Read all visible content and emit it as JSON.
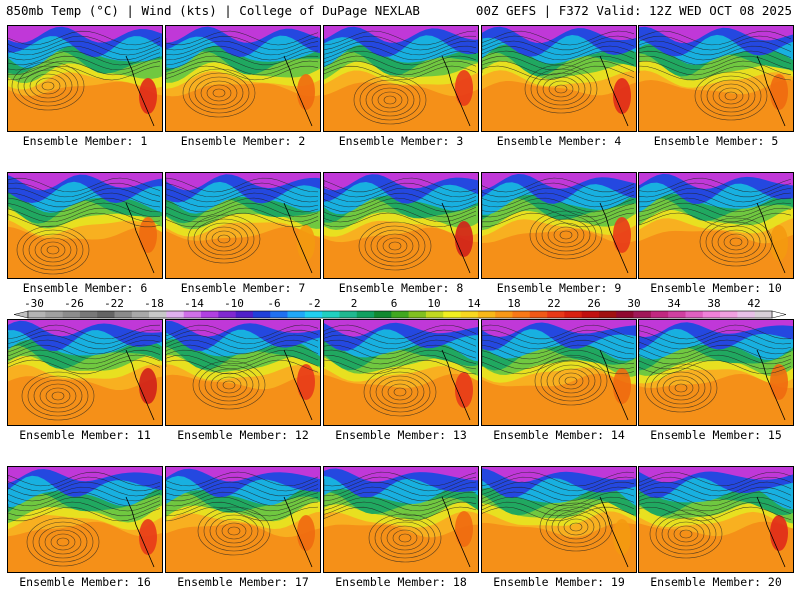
{
  "header": {
    "left": "850mb Temp (°C) | Wind (kts) | College of DuPage NEXLAB",
    "right": "00Z GEFS | F372 Valid: 12Z WED OCT 08 2025"
  },
  "members": [
    {
      "label": "Ensemble Member: 1",
      "accent": "#e02a1a"
    },
    {
      "label": "Ensemble Member: 2",
      "accent": "#f06a10"
    },
    {
      "label": "Ensemble Member: 3",
      "accent": "#e83a18"
    },
    {
      "label": "Ensemble Member: 4",
      "accent": "#e02a1a"
    },
    {
      "label": "Ensemble Member: 5",
      "accent": "#f06a10"
    },
    {
      "label": "Ensemble Member: 6",
      "accent": "#f06a10"
    },
    {
      "label": "Ensemble Member: 7",
      "accent": "#f49a10"
    },
    {
      "label": "Ensemble Member: 8",
      "accent": "#d0201a"
    },
    {
      "label": "Ensemble Member: 9",
      "accent": "#e83a18"
    },
    {
      "label": "Ensemble Member: 10",
      "accent": "#f49a10"
    },
    {
      "label": "Ensemble Member: 11",
      "accent": "#d0201a"
    },
    {
      "label": "Ensemble Member: 12",
      "accent": "#e83a18"
    },
    {
      "label": "Ensemble Member: 13",
      "accent": "#e83a18"
    },
    {
      "label": "Ensemble Member: 14",
      "accent": "#f06a10"
    },
    {
      "label": "Ensemble Member: 15",
      "accent": "#f06a10"
    },
    {
      "label": "Ensemble Member: 16",
      "accent": "#e83a18"
    },
    {
      "label": "Ensemble Member: 17",
      "accent": "#f06a10"
    },
    {
      "label": "Ensemble Member: 18",
      "accent": "#f06a10"
    },
    {
      "label": "Ensemble Member: 19",
      "accent": "#f49a10"
    },
    {
      "label": "Ensemble Member: 20",
      "accent": "#e02a1a"
    }
  ],
  "colorbar": {
    "ticks": [
      "-30",
      "-26",
      "-22",
      "-18",
      "-14",
      "-10",
      "-6",
      "-2",
      "2",
      "6",
      "10",
      "14",
      "18",
      "22",
      "26",
      "30",
      "34",
      "38",
      "42"
    ],
    "colors": [
      "#b4b4b4",
      "#a0a0a0",
      "#8c8c8c",
      "#787878",
      "#646464",
      "#8a8a8a",
      "#a8a8a8",
      "#c8c8c8",
      "#e0b0ee",
      "#d070e8",
      "#b040e0",
      "#8028d0",
      "#5020c8",
      "#2040d8",
      "#2070f0",
      "#20a8f8",
      "#20d0f0",
      "#20d0c0",
      "#20b890",
      "#10a060",
      "#108830",
      "#40a820",
      "#80c020",
      "#c0d820",
      "#f0f020",
      "#f8d820",
      "#f8b818",
      "#f89818",
      "#f87818",
      "#f05818",
      "#e83818",
      "#d82010",
      "#c01010",
      "#a01010",
      "#900830",
      "#a01858",
      "#c02880",
      "#d040a0",
      "#e060c0",
      "#f080d8",
      "#f0a0e0",
      "#e8c0e8",
      "#d8d0d8"
    ]
  },
  "palette": {
    "polar": "#c038d8",
    "cold": "#2448e0",
    "mid": "#18b0e0",
    "green": "#20a860",
    "yellow": "#e8e020",
    "warm": "#f8b020",
    "orange": "#f59018",
    "contour": "#222222"
  }
}
